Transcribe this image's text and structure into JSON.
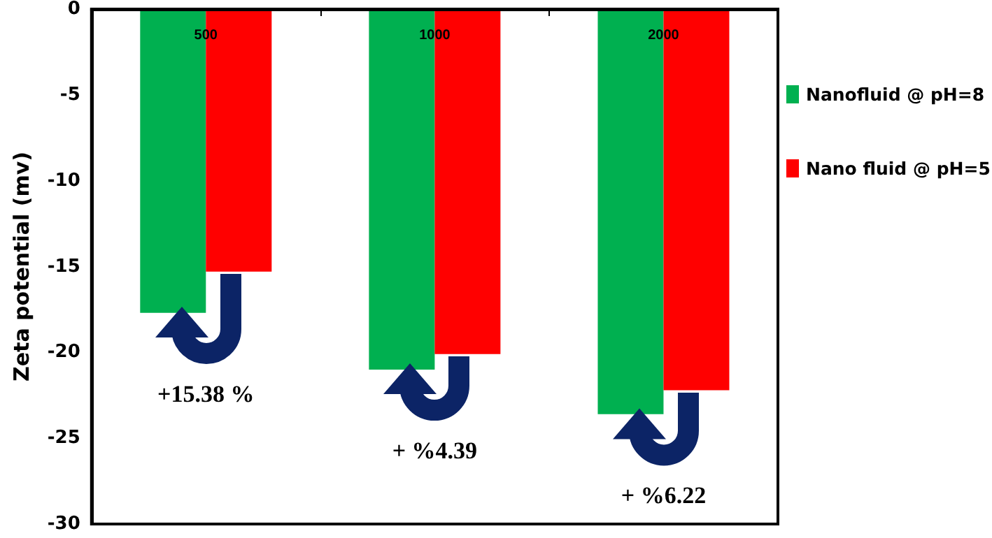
{
  "chart_data": {
    "type": "bar",
    "ylabel": "Zeta potential (mv)",
    "categories": [
      "500",
      "1000",
      "2000"
    ],
    "series": [
      {
        "name": "Nanofluid @ pH=8",
        "color": "#00b050",
        "values": [
          -17.7,
          -21.0,
          -23.6
        ]
      },
      {
        "name": "Nano fluid @ pH=5",
        "color": "#ff0000",
        "values": [
          -15.3,
          -20.1,
          -22.2
        ]
      }
    ],
    "ylim": [
      -30,
      0
    ],
    "yticks": [
      -30,
      -25,
      -20,
      -15,
      -10,
      -5,
      0
    ],
    "grid": false,
    "legend": "right",
    "annotations": [
      "+15.38 %",
      "+ %4.39",
      "+ %6.22"
    ]
  }
}
